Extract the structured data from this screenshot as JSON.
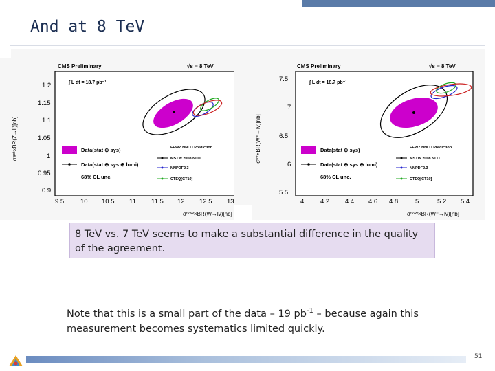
{
  "slide": {
    "title": "And at 8 TeV",
    "page_number": "51"
  },
  "callout": {
    "text": "8 TeV vs. 7 TeV seems to make a substantial difference in the quality of the agreement."
  },
  "note": {
    "before_sup": "Note that this is a small part of the data – 19 pb",
    "sup": "-1",
    "after_sup": " – because again this measurement becomes systematics limited quickly."
  },
  "colors": {
    "accent": "#5a7ba8",
    "title": "#1b2e52",
    "callout_bg": "#e6dcf0",
    "data_fill": "#cc00cc",
    "mstw": "#000000",
    "nnpdf": "#2222cc",
    "cteq": "#22aa22",
    "hera": "#cc2222"
  },
  "plots": [
    {
      "header_left": "CMS Preliminary",
      "header_right": "√s = 8 TeV",
      "lumi": "∫ L dt = 18.7 pb⁻¹",
      "ylabel": "σᴙᵒᵗ×BR(Z→ll)[nb]",
      "xlabel": "σᶠᶦⁿᵂ×BR(W→lν)[nb]",
      "xticks": [
        "9.5",
        "10",
        "10.5",
        "11",
        "11.5",
        "12",
        "12.5",
        "13"
      ],
      "yticks": [
        "1.2",
        "1.15",
        "1.1",
        "1.05",
        "1",
        "0.95",
        "0.9"
      ],
      "legend": {
        "data_box": "Data(stat ⊕ sys)",
        "data_lumi": "Data(stat ⊕ sys ⊕ lumi)",
        "cl": "68% CL unc.",
        "pred_title": "FEWZ NNLO Prediction",
        "mstw": "MSTW 2008 NLO",
        "nnpdf": "NNPDF2.3",
        "cteq": "CTEQ[CT10]"
      }
    },
    {
      "header_left": "CMS Preliminary",
      "header_right": "√s = 8 TeV",
      "lumi": "∫ L dt = 18.7 pb⁻¹",
      "ylabel": "σᵗᵒᵗ×BR(W⁺→lν)[nb]",
      "xlabel": "σᶠᶦⁿᵂ×BR(W⁻→lν)[nb]",
      "xticks": [
        "4",
        "4.2",
        "4.4",
        "4.6",
        "4.8",
        "5",
        "5.2",
        "5.4"
      ],
      "yticks": [
        "7.5",
        "7",
        "6.5",
        "6",
        "5.5"
      ],
      "legend": {
        "data_box": "Data(stat ⊕ sys)",
        "data_lumi": "Data(stat ⊕ sys ⊕ lumi)",
        "cl": "68% CL unc.",
        "pred_title": "FEWZ NNLO Prediction",
        "mstw": "MSTW 2008 NLO",
        "nnpdf": "NNPDF2.3",
        "cteq": "CTEQ[CT10]"
      }
    }
  ]
}
